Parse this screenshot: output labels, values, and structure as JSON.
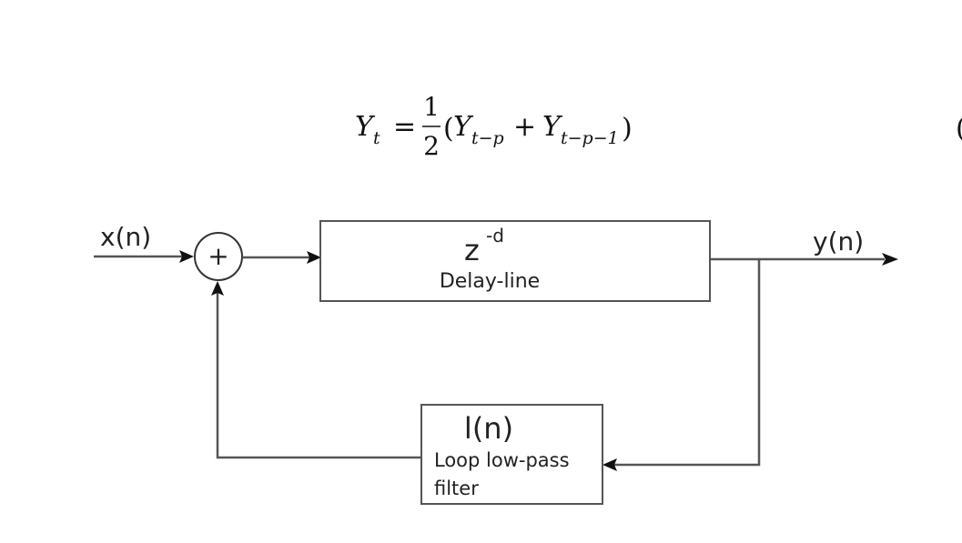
{
  "equation": {
    "lhs_symbol": "Y",
    "lhs_subscript": "t",
    "equals": "=",
    "frac_numerator": "1",
    "frac_denominator": "2",
    "open_paren": "(",
    "term1_symbol": "Y",
    "term1_subscript": "t−p",
    "plus": "+",
    "term2_symbol": "Y",
    "term2_subscript": "t−p−1",
    "close_paren": ")",
    "equation_number_fragment": "("
  },
  "diagram": {
    "input_label": "x(n)",
    "output_label": "y(n)",
    "summing_junction_symbol": "+",
    "delay_block": {
      "symbol": "z",
      "exponent": "-d",
      "caption": "Delay-line"
    },
    "filter_block": {
      "symbol": "l(n)",
      "caption_line1": "Loop low-pass",
      "caption_line2": "filter"
    }
  }
}
